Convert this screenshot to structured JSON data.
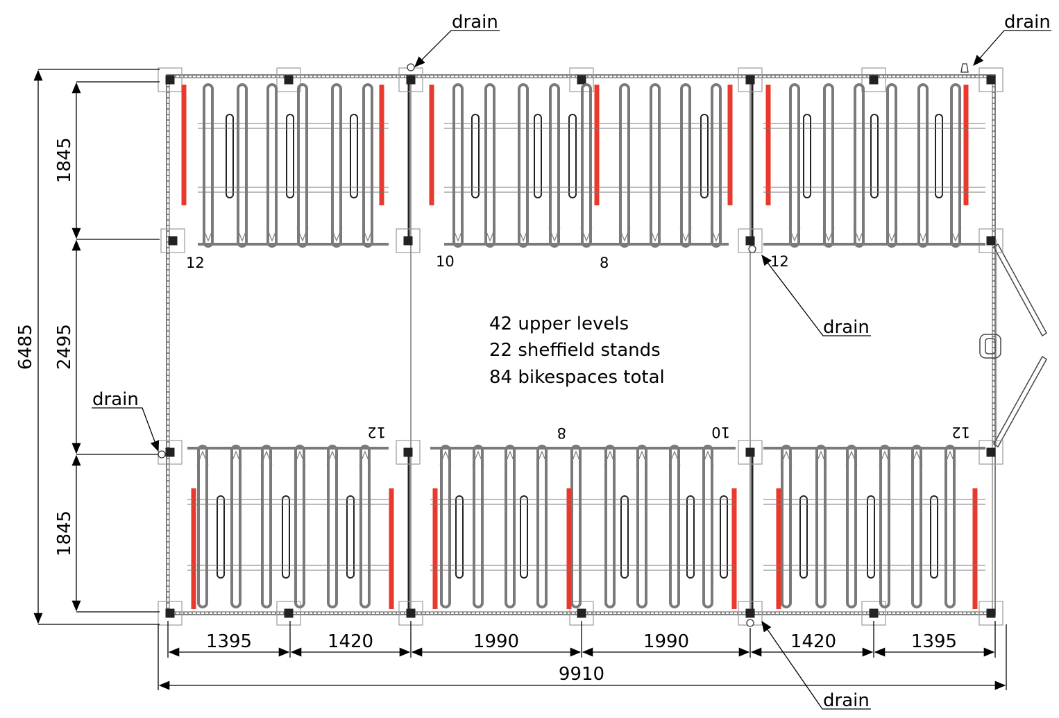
{
  "dimensions": {
    "total_height": "6485",
    "upper_depth": "1845",
    "aisle_width": "2495",
    "lower_depth": "1845",
    "total_width": "9910",
    "bays": [
      "1395",
      "1420",
      "1990",
      "1990",
      "1420",
      "1395"
    ]
  },
  "drains": {
    "top_center": "drain",
    "top_right": "drain",
    "middle_right": "drain",
    "left": "drain",
    "bottom": "drain"
  },
  "counts": {
    "upper": [
      "12",
      "10",
      "8",
      "12"
    ],
    "lower": [
      "12",
      "8",
      "10",
      "12"
    ]
  },
  "summary": {
    "line1": "42 upper levels",
    "line2": "22 sheffield stands",
    "line3": "84 bikespaces total"
  },
  "colors": {
    "line": "#333333",
    "rack": "#7a7a7a",
    "red_panel": "#e8392c"
  }
}
